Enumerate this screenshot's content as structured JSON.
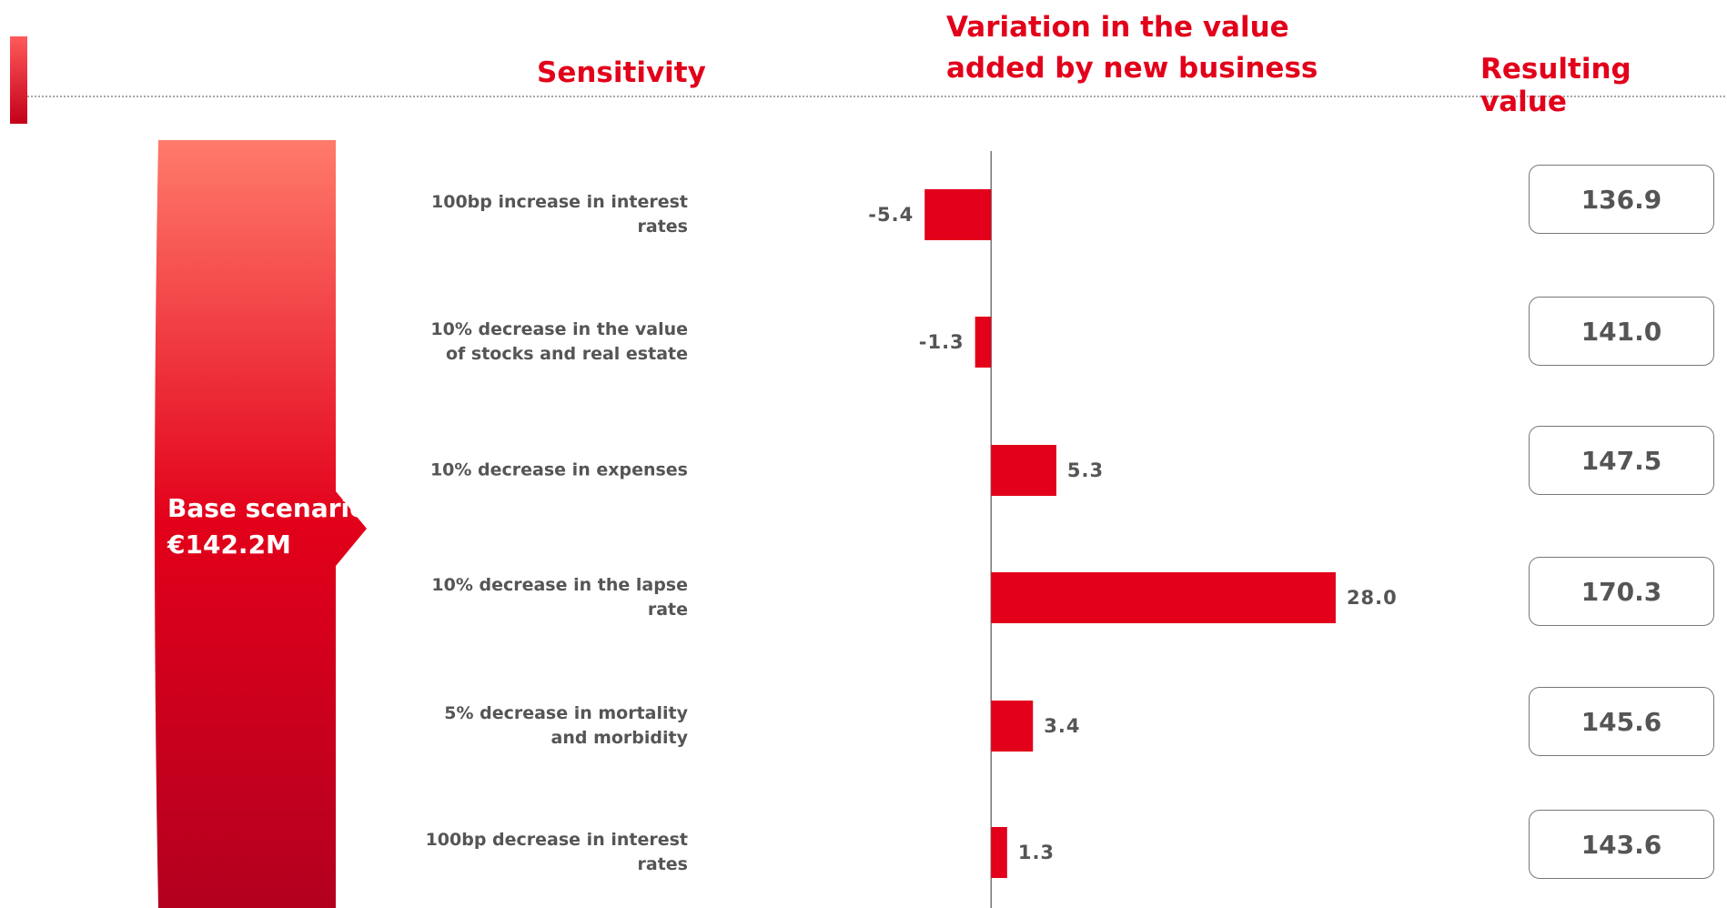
{
  "chart_data": {
    "type": "bar",
    "orientation": "horizontal",
    "headers": {
      "sensitivity": "Sensitivity",
      "variation": "Variation in the value added by new business",
      "result": "Resulting value"
    },
    "base_scenario": {
      "label": "Base scenario",
      "value": "€142.2M"
    },
    "categories": [
      "100bp increase in interest rates",
      "10% decrease in the value of stocks and real estate",
      "10% decrease in expenses",
      "10% decrease in the lapse rate",
      "5% decrease in mortality and morbidity",
      "100bp decrease in interest rates"
    ],
    "values": [
      -5.4,
      -1.3,
      5.3,
      28.0,
      3.4,
      1.3
    ],
    "value_labels": [
      "-5.4",
      "-1.3",
      "5.3",
      "28.0",
      "3.4",
      "1.3"
    ],
    "resulting_values": [
      "136.9",
      "141.0",
      "147.5",
      "170.3",
      "145.6",
      "143.6"
    ],
    "color": "#e2001a",
    "xlim": [
      -10,
      30
    ]
  }
}
